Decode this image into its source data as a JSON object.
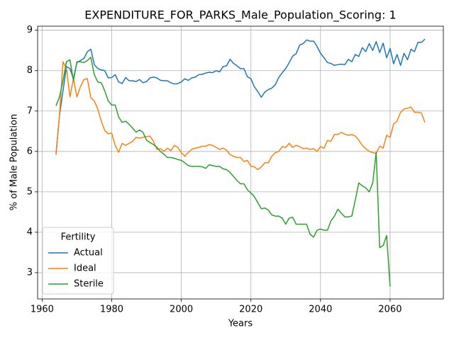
{
  "chart_data": {
    "type": "line",
    "title": "EXPENDITURE_FOR_PARKS_Male_Population_Scoring: 1",
    "x_label": "Years",
    "y_label": "% of Male Population",
    "legend_title": "Fertility",
    "legend": "lower left",
    "grid": true,
    "xlim": [
      1958.7,
      2075.3
    ],
    "xticks": [
      1960,
      1980,
      2000,
      2020,
      2040,
      2060
    ],
    "ylim": [
      2.35,
      9.1
    ],
    "yticks": [
      3,
      4,
      5,
      6,
      7,
      8,
      9
    ],
    "x": [
      1964,
      1965,
      1966,
      1967,
      1968,
      1969,
      1970,
      1971,
      1972,
      1973,
      1974,
      1975,
      1976,
      1977,
      1978,
      1979,
      1980,
      1981,
      1982,
      1983,
      1984,
      1985,
      1986,
      1987,
      1988,
      1989,
      1990,
      1991,
      1992,
      1993,
      1994,
      1995,
      1996,
      1997,
      1998,
      1999,
      2000,
      2001,
      2002,
      2003,
      2004,
      2005,
      2006,
      2007,
      2008,
      2009,
      2010,
      2011,
      2012,
      2013,
      2014,
      2015,
      2016,
      2017,
      2018,
      2019,
      2020,
      2021,
      2022,
      2023,
      2024,
      2025,
      2026,
      2027,
      2028,
      2029,
      2030,
      2031,
      2032,
      2033,
      2034,
      2035,
      2036,
      2037,
      2038,
      2039,
      2040,
      2041,
      2042,
      2043,
      2044,
      2045,
      2046,
      2047,
      2048,
      2049,
      2050,
      2051,
      2052,
      2053,
      2054,
      2055,
      2056,
      2057,
      2058,
      2059,
      2060,
      2061,
      2062,
      2063,
      2064,
      2065,
      2066,
      2067,
      2068,
      2069,
      2070
    ],
    "series": [
      {
        "name": "Actual",
        "color": "#1f77b4",
        "values": [
          5.95,
          6.9,
          7.5,
          8.1,
          8.05,
          7.8,
          8.2,
          8.25,
          8.3,
          8.47,
          8.53,
          8.15,
          8.05,
          8.02,
          8.0,
          7.82,
          7.83,
          7.9,
          7.72,
          7.68,
          7.83,
          7.75,
          7.75,
          7.73,
          7.78,
          7.7,
          7.73,
          7.82,
          7.84,
          7.82,
          7.76,
          7.75,
          7.75,
          7.7,
          7.67,
          7.68,
          7.72,
          7.8,
          7.76,
          7.82,
          7.84,
          7.9,
          7.91,
          7.94,
          7.96,
          7.95,
          8.0,
          7.97,
          8.1,
          8.12,
          8.28,
          8.18,
          8.12,
          8.05,
          8.05,
          7.85,
          7.8,
          7.6,
          7.48,
          7.34,
          7.47,
          7.53,
          7.57,
          7.65,
          7.83,
          7.95,
          8.05,
          8.2,
          8.36,
          8.42,
          8.63,
          8.67,
          8.76,
          8.73,
          8.73,
          8.6,
          8.43,
          8.32,
          8.2,
          8.18,
          8.13,
          8.15,
          8.16,
          8.15,
          8.28,
          8.22,
          8.4,
          8.35,
          8.57,
          8.47,
          8.67,
          8.5,
          8.72,
          8.45,
          8.68,
          8.32,
          8.55,
          8.17,
          8.4,
          8.13,
          8.43,
          8.27,
          8.53,
          8.47,
          8.7,
          8.7,
          8.78
        ]
      },
      {
        "name": "Ideal",
        "color": "#ff7f0e",
        "values": [
          5.92,
          6.9,
          8.22,
          8.05,
          7.35,
          7.8,
          7.35,
          7.6,
          7.78,
          7.8,
          7.33,
          7.25,
          7.05,
          6.75,
          6.52,
          6.44,
          6.45,
          6.15,
          5.98,
          6.2,
          6.15,
          6.2,
          6.25,
          6.35,
          6.33,
          6.35,
          6.37,
          6.38,
          6.25,
          6.05,
          6.07,
          6.0,
          6.08,
          6.02,
          6.15,
          6.1,
          5.97,
          5.88,
          5.98,
          6.05,
          6.08,
          6.1,
          6.13,
          6.13,
          6.17,
          6.15,
          6.1,
          6.05,
          6.08,
          6.03,
          5.92,
          5.88,
          5.85,
          5.85,
          5.75,
          5.78,
          5.63,
          5.62,
          5.55,
          5.62,
          5.72,
          5.72,
          5.88,
          5.97,
          6.0,
          6.12,
          6.1,
          6.2,
          6.1,
          6.15,
          6.12,
          6.07,
          6.08,
          6.05,
          6.07,
          6.0,
          6.12,
          6.08,
          6.27,
          6.25,
          6.42,
          6.42,
          6.47,
          6.43,
          6.4,
          6.42,
          6.38,
          6.28,
          6.15,
          6.07,
          6.0,
          5.97,
          5.95,
          6.13,
          6.08,
          6.4,
          6.35,
          6.68,
          6.75,
          6.97,
          7.05,
          7.07,
          7.1,
          6.97,
          6.97,
          6.95,
          6.72
        ]
      },
      {
        "name": "Sterile",
        "color": "#2ca02c",
        "values": [
          7.13,
          7.35,
          7.75,
          8.22,
          8.27,
          7.75,
          8.22,
          8.22,
          8.2,
          8.25,
          8.33,
          7.9,
          7.72,
          7.7,
          7.5,
          7.25,
          7.15,
          7.15,
          6.85,
          6.72,
          6.75,
          6.67,
          6.58,
          6.48,
          6.53,
          6.47,
          6.28,
          6.22,
          6.17,
          6.1,
          6.0,
          5.93,
          5.85,
          5.85,
          5.83,
          5.8,
          5.78,
          5.72,
          5.65,
          5.63,
          5.63,
          5.63,
          5.62,
          5.58,
          5.67,
          5.65,
          5.63,
          5.63,
          5.57,
          5.55,
          5.48,
          5.38,
          5.28,
          5.2,
          5.2,
          5.05,
          4.97,
          4.88,
          4.73,
          4.58,
          4.6,
          4.55,
          4.43,
          4.4,
          4.4,
          4.35,
          4.2,
          4.35,
          4.37,
          4.2,
          4.2,
          4.2,
          4.2,
          3.95,
          3.88,
          4.05,
          4.08,
          4.05,
          4.05,
          4.28,
          4.4,
          4.57,
          4.47,
          4.38,
          4.38,
          4.4,
          4.8,
          5.22,
          5.15,
          5.1,
          5.0,
          5.22,
          5.98,
          3.62,
          3.67,
          3.92,
          2.66,
          null,
          null,
          null,
          null,
          null,
          null,
          null,
          null,
          null,
          null
        ]
      }
    ]
  }
}
